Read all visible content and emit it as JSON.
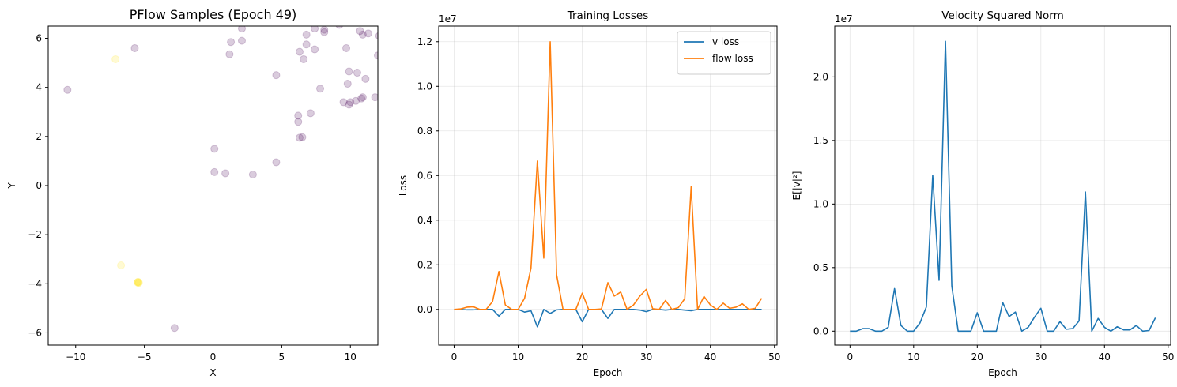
{
  "figure": {
    "background": "#ffffff",
    "colors": {
      "v_loss": "#1f77b4",
      "flow_loss": "#ff7f0e",
      "velocity": "#1f77b4",
      "grid": "#b0b0b0",
      "axes": "#000000",
      "scatter_purple": "#440154",
      "scatter_yellow": "#fde725"
    }
  },
  "chart_data": [
    {
      "type": "scatter",
      "title": "PFlow Samples (Epoch 49)",
      "xlabel": "X",
      "ylabel": "Y",
      "xlim": [
        -12,
        12
      ],
      "ylim": [
        -6.5,
        6.5
      ],
      "xticks": [
        -10,
        -5,
        0,
        5,
        10
      ],
      "yticks": [
        -6,
        -4,
        -2,
        0,
        2,
        4,
        6
      ],
      "grid": false,
      "alpha": 0.2,
      "series": [
        {
          "color": "#440154",
          "points": [
            [
              -10.6,
              3.9
            ],
            [
              -5.7,
              5.6
            ],
            [
              -2.8,
              -5.8
            ],
            [
              0.1,
              1.5
            ],
            [
              0.1,
              0.55
            ],
            [
              0.9,
              0.5
            ],
            [
              2.9,
              0.45
            ],
            [
              4.6,
              0.95
            ],
            [
              1.2,
              5.35
            ],
            [
              1.3,
              5.85
            ],
            [
              2.1,
              5.9
            ],
            [
              2.1,
              6.4
            ],
            [
              4.6,
              4.5
            ],
            [
              6.2,
              2.85
            ],
            [
              6.2,
              2.6
            ],
            [
              6.3,
              1.95
            ],
            [
              6.5,
              1.97
            ],
            [
              6.3,
              5.45
            ],
            [
              6.6,
              5.15
            ],
            [
              6.8,
              5.75
            ],
            [
              6.8,
              6.15
            ],
            [
              7.1,
              2.95
            ],
            [
              7.4,
              5.55
            ],
            [
              7.4,
              6.4
            ],
            [
              7.8,
              3.95
            ],
            [
              8.1,
              6.25
            ],
            [
              8.1,
              6.35
            ],
            [
              9.2,
              6.55
            ],
            [
              9.5,
              3.4
            ],
            [
              9.7,
              5.6
            ],
            [
              9.8,
              4.15
            ],
            [
              9.9,
              3.3
            ],
            [
              9.9,
              4.65
            ],
            [
              10.0,
              3.4
            ],
            [
              10.4,
              3.45
            ],
            [
              10.5,
              4.6
            ],
            [
              10.7,
              6.3
            ],
            [
              10.8,
              3.55
            ],
            [
              10.9,
              3.6
            ],
            [
              10.9,
              6.15
            ],
            [
              11.1,
              4.35
            ],
            [
              11.3,
              6.2
            ],
            [
              11.8,
              3.6
            ],
            [
              12.0,
              5.3
            ],
            [
              12.1,
              6.1
            ]
          ]
        },
        {
          "color": "#fde725",
          "points": [
            [
              -7.1,
              5.15
            ],
            [
              -6.7,
              -3.25
            ],
            [
              -5.4,
              -3.95
            ],
            [
              -5.45,
              -3.92
            ],
            [
              -5.5,
              -3.95
            ],
            [
              -5.42,
              -3.97
            ],
            [
              -5.48,
              -3.93
            ]
          ]
        }
      ]
    },
    {
      "type": "line",
      "title": "Training Losses",
      "xlabel": "Epoch",
      "ylabel": "Loss",
      "scale_label": "1e7",
      "xlim": [
        -2.4,
        50.4
      ],
      "ylim": [
        -0.16,
        1.27
      ],
      "xticks": [
        0,
        10,
        20,
        30,
        40,
        50
      ],
      "yticks": [
        0.0,
        0.2,
        0.4,
        0.6,
        0.8,
        1.0,
        1.2
      ],
      "ytick_labels": [
        "0.0",
        "0.2",
        "0.4",
        "0.6",
        "0.8",
        "1.0",
        "1.2"
      ],
      "grid": true,
      "legend": "top-right",
      "x": [
        0,
        1,
        2,
        3,
        4,
        5,
        6,
        7,
        8,
        9,
        10,
        11,
        12,
        13,
        14,
        15,
        16,
        17,
        18,
        19,
        20,
        21,
        22,
        23,
        24,
        25,
        26,
        27,
        28,
        29,
        30,
        31,
        32,
        33,
        34,
        35,
        36,
        37,
        38,
        39,
        40,
        41,
        42,
        43,
        44,
        45,
        46,
        47,
        48
      ],
      "series": [
        {
          "name": "v loss",
          "color": "#1f77b4",
          "values": [
            0.0,
            0.0,
            -0.002,
            -0.002,
            0.0,
            0.0,
            0.0,
            -0.03,
            0.0,
            0.0,
            0.0,
            -0.012,
            -0.006,
            -0.078,
            0.0,
            -0.018,
            -0.002,
            0.0,
            0.0,
            0.0,
            -0.055,
            0.0,
            0.0,
            0.0,
            -0.04,
            0.0,
            0.0,
            0.0,
            0.0,
            -0.003,
            -0.01,
            0.0,
            0.0,
            -0.003,
            0.0,
            0.0,
            -0.003,
            -0.006,
            0.0,
            0.0,
            0.0,
            0.0,
            0.0,
            0.0,
            0.0,
            0.0,
            0.0,
            0.0,
            0.0
          ]
        },
        {
          "name": "flow loss",
          "color": "#ff7f0e",
          "values": [
            0.0,
            0.002,
            0.01,
            0.012,
            0.0,
            0.0,
            0.035,
            0.17,
            0.02,
            0.0,
            0.0,
            0.05,
            0.185,
            0.665,
            0.23,
            1.2,
            0.155,
            0.0,
            0.0,
            0.0,
            0.073,
            0.0,
            0.0,
            0.002,
            0.12,
            0.06,
            0.078,
            0.0,
            0.02,
            0.06,
            0.09,
            0.003,
            0.0,
            0.04,
            0.0,
            0.008,
            0.048,
            0.55,
            0.0,
            0.058,
            0.02,
            0.0,
            0.028,
            0.005,
            0.01,
            0.025,
            0.0,
            0.005,
            0.05
          ]
        }
      ]
    },
    {
      "type": "line",
      "title": "Velocity Squared Norm",
      "xlabel": "Epoch",
      "ylabel": "E[|v|²]",
      "scale_label": "1e7",
      "xlim": [
        -2.4,
        50.4
      ],
      "ylim": [
        -0.11,
        2.4
      ],
      "xticks": [
        0,
        10,
        20,
        30,
        40,
        50
      ],
      "yticks": [
        0.0,
        0.5,
        1.0,
        1.5,
        2.0
      ],
      "ytick_labels": [
        "0.0",
        "0.5",
        "1.0",
        "1.5",
        "2.0"
      ],
      "grid": true,
      "x": [
        0,
        1,
        2,
        3,
        4,
        5,
        6,
        7,
        8,
        9,
        10,
        11,
        12,
        13,
        14,
        15,
        16,
        17,
        18,
        19,
        20,
        21,
        22,
        23,
        24,
        25,
        26,
        27,
        28,
        29,
        30,
        31,
        32,
        33,
        34,
        35,
        36,
        37,
        38,
        39,
        40,
        41,
        42,
        43,
        44,
        45,
        46,
        47,
        48
      ],
      "series": [
        {
          "color": "#1f77b4",
          "values": [
            0.0,
            0.0,
            0.02,
            0.02,
            0.0,
            0.0,
            0.03,
            0.335,
            0.045,
            0.0,
            0.0,
            0.065,
            0.19,
            1.225,
            0.4,
            2.28,
            0.355,
            0.0,
            0.0,
            0.0,
            0.145,
            0.0,
            0.0,
            0.0,
            0.225,
            0.115,
            0.15,
            0.0,
            0.03,
            0.11,
            0.18,
            0.0,
            0.0,
            0.075,
            0.015,
            0.02,
            0.08,
            1.095,
            0.0,
            0.1,
            0.03,
            0.0,
            0.035,
            0.01,
            0.01,
            0.045,
            0.0,
            0.005,
            0.105
          ]
        }
      ]
    }
  ]
}
